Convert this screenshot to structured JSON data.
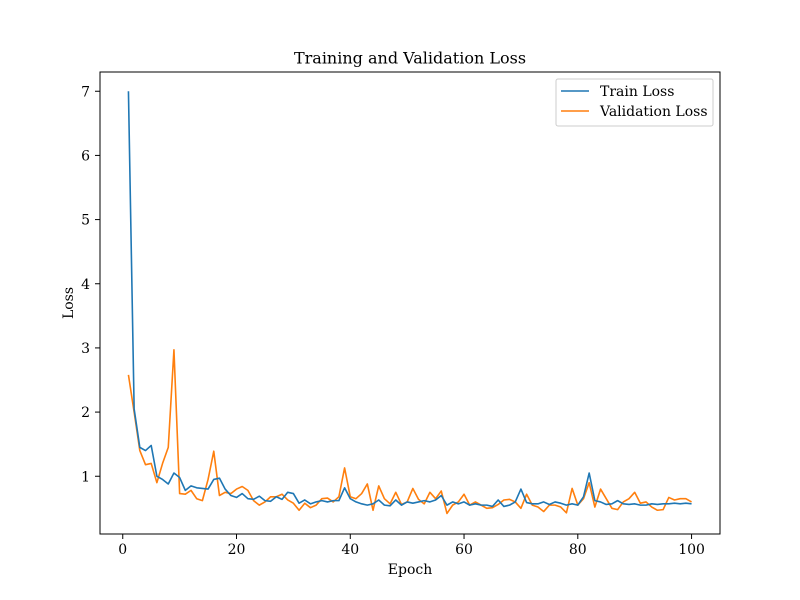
{
  "chart_data": {
    "type": "line",
    "title": "Training and Validation Loss",
    "xlabel": "Epoch",
    "ylabel": "Loss",
    "xlim": [
      -4,
      105
    ],
    "ylim": [
      0.1,
      7.3
    ],
    "xticks": [
      0,
      20,
      40,
      60,
      80,
      100
    ],
    "yticks": [
      1,
      2,
      3,
      4,
      5,
      6,
      7
    ],
    "grid": false,
    "legend": "top-right",
    "x": [
      1,
      2,
      3,
      4,
      5,
      6,
      7,
      8,
      9,
      10,
      11,
      12,
      13,
      14,
      15,
      16,
      17,
      18,
      19,
      20,
      21,
      22,
      23,
      24,
      25,
      26,
      27,
      28,
      29,
      30,
      31,
      32,
      33,
      34,
      35,
      36,
      37,
      38,
      39,
      40,
      41,
      42,
      43,
      44,
      45,
      46,
      47,
      48,
      49,
      50,
      51,
      52,
      53,
      54,
      55,
      56,
      57,
      58,
      59,
      60,
      61,
      62,
      63,
      64,
      65,
      66,
      67,
      68,
      69,
      70,
      71,
      72,
      73,
      74,
      75,
      76,
      77,
      78,
      79,
      80,
      81,
      82,
      83,
      84,
      85,
      86,
      87,
      88,
      89,
      90,
      91,
      92,
      93,
      94,
      95,
      96,
      97,
      98,
      99,
      100
    ],
    "series": [
      {
        "name": "Train Loss",
        "color": "#1f77b4",
        "values": [
          7.0,
          2.05,
          1.45,
          1.4,
          1.48,
          1.0,
          0.95,
          0.88,
          1.05,
          0.98,
          0.78,
          0.85,
          0.82,
          0.81,
          0.8,
          0.95,
          0.97,
          0.8,
          0.7,
          0.67,
          0.73,
          0.65,
          0.64,
          0.69,
          0.62,
          0.61,
          0.68,
          0.64,
          0.75,
          0.73,
          0.58,
          0.63,
          0.57,
          0.6,
          0.62,
          0.6,
          0.62,
          0.62,
          0.82,
          0.65,
          0.6,
          0.57,
          0.55,
          0.57,
          0.63,
          0.55,
          0.54,
          0.63,
          0.55,
          0.6,
          0.58,
          0.6,
          0.62,
          0.6,
          0.63,
          0.7,
          0.55,
          0.6,
          0.57,
          0.6,
          0.55,
          0.57,
          0.55,
          0.55,
          0.53,
          0.63,
          0.53,
          0.55,
          0.6,
          0.8,
          0.59,
          0.57,
          0.57,
          0.6,
          0.56,
          0.6,
          0.58,
          0.55,
          0.57,
          0.55,
          0.68,
          1.05,
          0.62,
          0.6,
          0.56,
          0.57,
          0.62,
          0.57,
          0.56,
          0.57,
          0.55,
          0.55,
          0.57,
          0.56,
          0.57,
          0.57,
          0.58,
          0.57,
          0.58,
          0.57
        ]
      },
      {
        "name": "Validation Loss",
        "color": "#ff7f0e",
        "values": [
          2.58,
          2.0,
          1.4,
          1.18,
          1.2,
          0.9,
          1.2,
          1.45,
          2.97,
          0.73,
          0.72,
          0.78,
          0.65,
          0.62,
          0.95,
          1.39,
          0.7,
          0.75,
          0.73,
          0.8,
          0.84,
          0.78,
          0.62,
          0.55,
          0.6,
          0.68,
          0.68,
          0.72,
          0.63,
          0.58,
          0.47,
          0.58,
          0.51,
          0.55,
          0.65,
          0.66,
          0.6,
          0.68,
          1.13,
          0.68,
          0.65,
          0.73,
          0.88,
          0.47,
          0.85,
          0.65,
          0.57,
          0.75,
          0.56,
          0.6,
          0.81,
          0.64,
          0.57,
          0.75,
          0.65,
          0.77,
          0.42,
          0.55,
          0.6,
          0.72,
          0.55,
          0.6,
          0.55,
          0.5,
          0.51,
          0.56,
          0.63,
          0.64,
          0.6,
          0.5,
          0.72,
          0.55,
          0.52,
          0.45,
          0.55,
          0.55,
          0.52,
          0.43,
          0.81,
          0.55,
          0.65,
          0.9,
          0.52,
          0.8,
          0.65,
          0.5,
          0.48,
          0.6,
          0.65,
          0.75,
          0.58,
          0.6,
          0.52,
          0.47,
          0.48,
          0.67,
          0.63,
          0.65,
          0.65,
          0.6
        ]
      }
    ]
  }
}
